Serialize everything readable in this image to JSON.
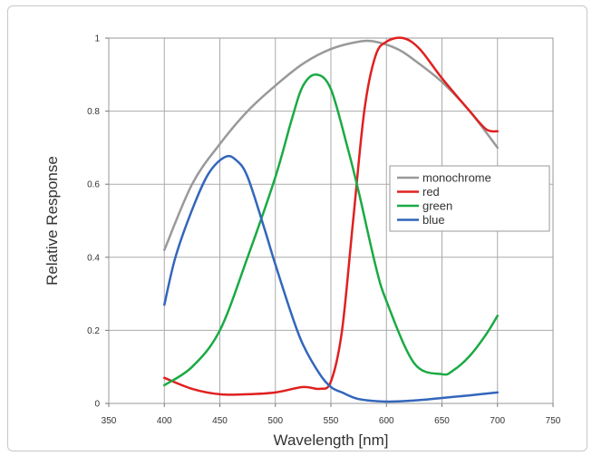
{
  "chart_data": {
    "type": "line",
    "title": "",
    "xlabel": "Wavelength [nm]",
    "ylabel": "Relative Response",
    "xlim": [
      350,
      750
    ],
    "ylim": [
      0,
      1
    ],
    "xticks": [
      350,
      400,
      450,
      500,
      550,
      600,
      650,
      700,
      750
    ],
    "yticks": [
      0,
      0.2,
      0.4,
      0.6,
      0.8,
      1
    ],
    "ytick_labels": [
      "0",
      "0.2",
      "0.4",
      "0.6",
      "0.8",
      "1"
    ],
    "grid": true,
    "legend_position": "right",
    "series": [
      {
        "name": "monochrome",
        "color": "#999999",
        "x": [
          400,
          425,
          450,
          475,
          500,
          525,
          550,
          575,
          590,
          610,
          625,
          650,
          675,
          700
        ],
        "y": [
          0.42,
          0.6,
          0.71,
          0.8,
          0.87,
          0.93,
          0.97,
          0.99,
          0.99,
          0.97,
          0.94,
          0.88,
          0.8,
          0.7
        ]
      },
      {
        "name": "red",
        "color": "#e02020",
        "x": [
          400,
          425,
          450,
          475,
          500,
          525,
          540,
          550,
          560,
          570,
          580,
          590,
          600,
          615,
          630,
          650,
          675,
          690,
          700
        ],
        "y": [
          0.07,
          0.04,
          0.025,
          0.025,
          0.03,
          0.045,
          0.04,
          0.06,
          0.2,
          0.5,
          0.8,
          0.95,
          0.99,
          1.0,
          0.97,
          0.89,
          0.8,
          0.75,
          0.745
        ]
      },
      {
        "name": "green",
        "color": "#1aaa44",
        "x": [
          400,
          425,
          450,
          475,
          500,
          515,
          525,
          537,
          550,
          565,
          575,
          590,
          600,
          625,
          650,
          660,
          675,
          690,
          700
        ],
        "y": [
          0.05,
          0.1,
          0.2,
          0.4,
          0.62,
          0.78,
          0.87,
          0.9,
          0.86,
          0.7,
          0.58,
          0.38,
          0.28,
          0.11,
          0.08,
          0.09,
          0.13,
          0.19,
          0.24
        ]
      },
      {
        "name": "blue",
        "color": "#3366bb",
        "x": [
          400,
          410,
          425,
          440,
          455,
          465,
          475,
          490,
          500,
          515,
          525,
          540,
          550,
          560,
          575,
          600,
          625,
          650,
          675,
          700
        ],
        "y": [
          0.27,
          0.4,
          0.53,
          0.63,
          0.675,
          0.665,
          0.62,
          0.48,
          0.38,
          0.24,
          0.16,
          0.08,
          0.045,
          0.03,
          0.012,
          0.005,
          0.008,
          0.015,
          0.022,
          0.03
        ]
      }
    ]
  }
}
